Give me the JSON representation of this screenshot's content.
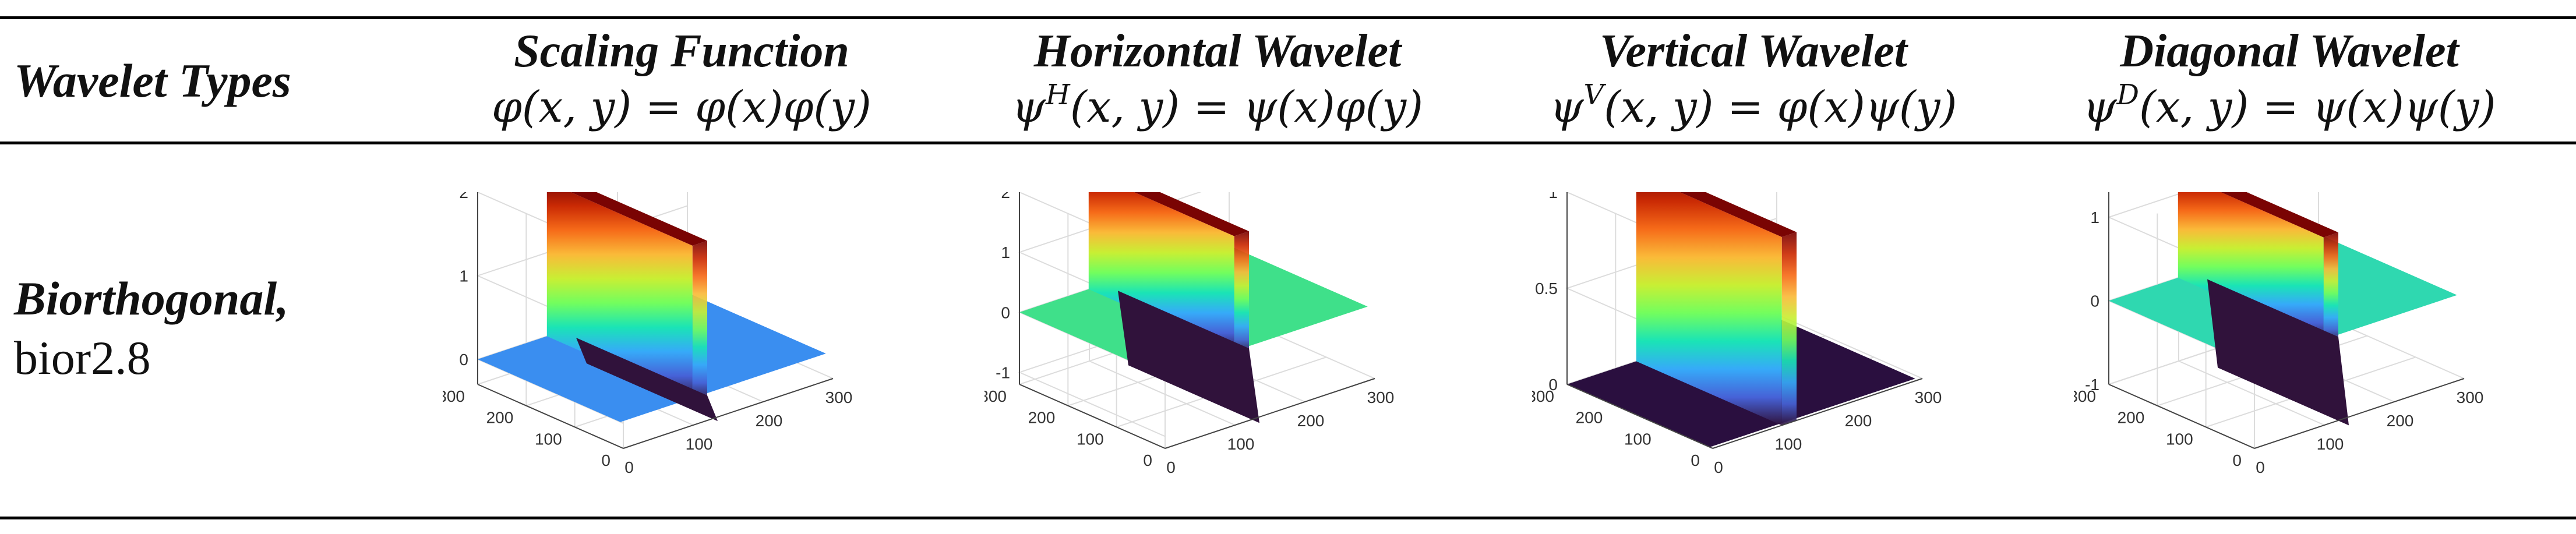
{
  "header": {
    "col0": "Wavelet Types",
    "cols": [
      {
        "title": "Scaling Function",
        "formula": "φ(x, y) = φ(x)φ(y)",
        "sup": ""
      },
      {
        "title": "Horizontal Wavelet",
        "formula_pre": "ψ",
        "sup": "H",
        "formula_post": "(x, y) = ψ(x)φ(y)"
      },
      {
        "title": "Vertical Wavelet",
        "formula_pre": "ψ",
        "sup": "V",
        "formula_post": "(x, y) = φ(x)ψ(y)"
      },
      {
        "title": "Diagonal Wavelet",
        "formula_pre": "ψ",
        "sup": "D",
        "formula_post": "(x, y) = ψ(x)ψ(y)"
      }
    ]
  },
  "row": {
    "family": "Biorthogonal,",
    "name": "bior2.8"
  },
  "plots": [
    {
      "z_ticks": [
        "2",
        "1",
        "0"
      ],
      "y_ticks": [
        "300",
        "200",
        "100",
        "0"
      ],
      "x_ticks": [
        "0",
        "100",
        "200",
        "300"
      ],
      "plane_color": "#3a8ef0",
      "z_min": -0.3,
      "z_max": 2.0,
      "ridge_max": 1.85,
      "dip": -0.35
    },
    {
      "z_ticks": [
        "2",
        "1",
        "0",
        "-1"
      ],
      "y_ticks": [
        "300",
        "200",
        "100",
        "0"
      ],
      "x_ticks": [
        "0",
        "100",
        "200",
        "300"
      ],
      "plane_color": "#3fe08a",
      "z_min": -1.2,
      "z_max": 2.0,
      "ridge_max": 1.95,
      "dip": -1.3
    },
    {
      "z_ticks": [
        "1",
        "0.5",
        "0"
      ],
      "y_ticks": [
        "300",
        "200",
        "100",
        "0"
      ],
      "x_ticks": [
        "0",
        "100",
        "200",
        "300"
      ],
      "plane_color": "#2a0f3f",
      "z_min": 0.0,
      "z_max": 1.0,
      "ridge_max": 0.98,
      "dip": 0.0
    },
    {
      "z_ticks": [
        "1",
        "0",
        "-1"
      ],
      "y_ticks": [
        "300",
        "200",
        "100",
        "0"
      ],
      "x_ticks": [
        "0",
        "100",
        "200",
        "300"
      ],
      "plane_color": "#2fd8b0",
      "z_min": -1.0,
      "z_max": 1.3,
      "ridge_max": 1.25,
      "dip": -1.1
    }
  ],
  "colormap": [
    "#30123b",
    "#4662d7",
    "#36aaf9",
    "#1ae4b6",
    "#72fe5e",
    "#c8ef34",
    "#faba39",
    "#f66b19",
    "#ca2a04",
    "#7a0403"
  ]
}
